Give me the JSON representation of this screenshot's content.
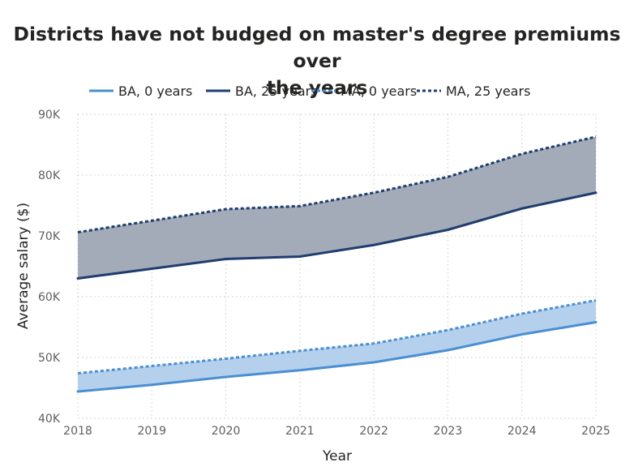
{
  "chart_data": {
    "type": "line",
    "title_lines": [
      "Districts have not budged on master's degree premiums over",
      "the years"
    ],
    "xlabel": "Year",
    "ylabel": "Average salary ($)",
    "categories": [
      "2018",
      "2019",
      "2020",
      "2021",
      "2022",
      "2023",
      "2024",
      "2025"
    ],
    "ylim": [
      40000,
      90000
    ],
    "yticks": [
      {
        "value": 40000,
        "label": "40K"
      },
      {
        "value": 50000,
        "label": "50K"
      },
      {
        "value": 60000,
        "label": "60K"
      },
      {
        "value": 70000,
        "label": "70K"
      },
      {
        "value": 80000,
        "label": "80K"
      },
      {
        "value": 90000,
        "label": "90K"
      }
    ],
    "grid": true,
    "legend_position": "top",
    "series": [
      {
        "name": "BA, 0 years",
        "color": "#4a8fd1",
        "style": "solid",
        "values": [
          44400,
          45500,
          46800,
          47900,
          49200,
          51200,
          53800,
          55800
        ]
      },
      {
        "name": "BA, 25 years",
        "color": "#1f3d6e",
        "style": "solid",
        "values": [
          63000,
          64600,
          66200,
          66600,
          68500,
          71000,
          74500,
          77100
        ]
      },
      {
        "name": "MA, 0 years",
        "color": "#4a8fd1",
        "style": "dotted",
        "values": [
          47400,
          48600,
          49800,
          51100,
          52300,
          54500,
          57200,
          59400
        ]
      },
      {
        "name": "MA, 25 years",
        "color": "#1f3d6e",
        "style": "dotted",
        "values": [
          70600,
          72500,
          74400,
          74900,
          77100,
          79700,
          83500,
          86300
        ]
      }
    ],
    "bands": [
      {
        "between": [
          "BA, 0 years",
          "MA, 0 years"
        ],
        "fill": "#b5d0ec"
      },
      {
        "between": [
          "BA, 25 years",
          "MA, 25 years"
        ],
        "fill": "#a3aab8"
      }
    ]
  }
}
